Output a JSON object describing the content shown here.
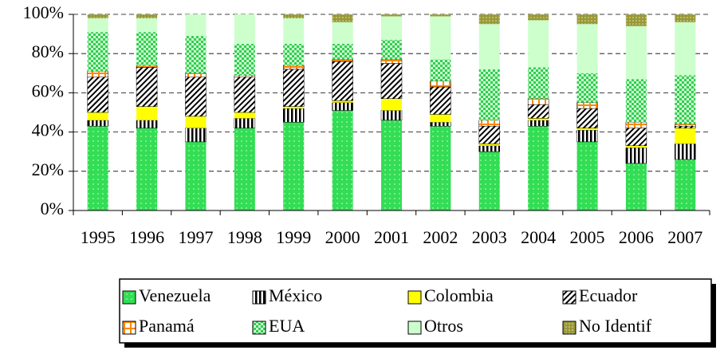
{
  "chart_data": {
    "type": "stacked-bar",
    "categories": [
      "1995",
      "1996",
      "1997",
      "1998",
      "1999",
      "2000",
      "2001",
      "2002",
      "2003",
      "2004",
      "2005",
      "2006",
      "2007"
    ],
    "series": [
      {
        "name": "Venezuela",
        "color": "#33dd55",
        "values": [
          43,
          42,
          35,
          42,
          45,
          51,
          46,
          43,
          30,
          43,
          35,
          24,
          26
        ]
      },
      {
        "name": "México",
        "color": "#ffffff",
        "values": [
          3,
          4,
          7,
          5,
          7,
          4,
          5,
          2,
          3,
          3,
          6,
          8,
          8
        ]
      },
      {
        "name": "Colombia",
        "color": "#ffff00",
        "values": [
          4,
          7,
          6,
          3,
          1,
          1,
          6,
          4,
          1,
          1,
          1,
          1,
          8
        ]
      },
      {
        "name": "Ecuador",
        "color": "#ffffff",
        "values": [
          18,
          20,
          20,
          18,
          19,
          20,
          18,
          14,
          9,
          7,
          10,
          9,
          1
        ]
      },
      {
        "name": "Panamá",
        "color": "#ffffff",
        "values": [
          3,
          1,
          2,
          1,
          2,
          1,
          2,
          3,
          3,
          3,
          3,
          3,
          1
        ]
      },
      {
        "name": "EUA",
        "color": "#33cc55",
        "values": [
          20,
          17,
          19,
          16,
          11,
          8,
          10,
          11,
          26,
          16,
          15,
          22,
          25
        ]
      },
      {
        "name": "Otros",
        "color": "#ccffcc",
        "values": [
          7,
          7,
          11,
          15,
          13,
          11,
          12,
          22,
          23,
          24,
          25,
          27,
          27
        ]
      },
      {
        "name": "No Identif",
        "color": "#999933",
        "values": [
          2,
          2,
          0,
          0,
          2,
          4,
          1,
          1,
          5,
          3,
          5,
          6,
          4
        ]
      }
    ],
    "ylim": [
      0,
      100
    ],
    "yticks": [
      {
        "value": 0,
        "label": "0%"
      },
      {
        "value": 20,
        "label": "20%"
      },
      {
        "value": 40,
        "label": "40%"
      },
      {
        "value": 60,
        "label": "60%"
      },
      {
        "value": 80,
        "label": "80%"
      },
      {
        "value": 100,
        "label": "100%"
      }
    ],
    "grid": true
  }
}
